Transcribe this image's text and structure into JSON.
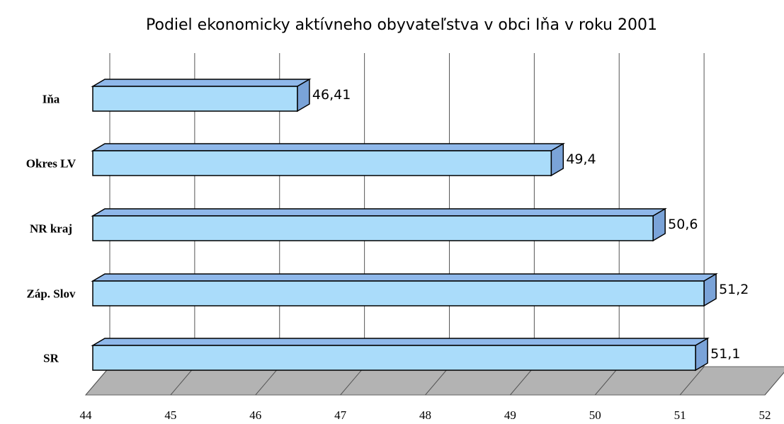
{
  "chart_data": {
    "type": "bar3d_horizontal",
    "title": "Podiel ekonomicky aktívneho obyvateľstva v obci Iňa v roku 2001",
    "categories": [
      "Iňa",
      "Okres LV",
      "NR kraj",
      "Záp. Slov",
      "SR"
    ],
    "values": [
      46.41,
      49.4,
      50.6,
      51.2,
      51.1
    ],
    "value_labels": [
      "46,41",
      "49,4",
      "50,6",
      "51,2",
      "51,1"
    ],
    "color": "#aadcfa",
    "xlim": [
      44,
      52
    ],
    "xticks": [
      44,
      45,
      46,
      47,
      48,
      49,
      50,
      51,
      52
    ],
    "grid": true
  }
}
